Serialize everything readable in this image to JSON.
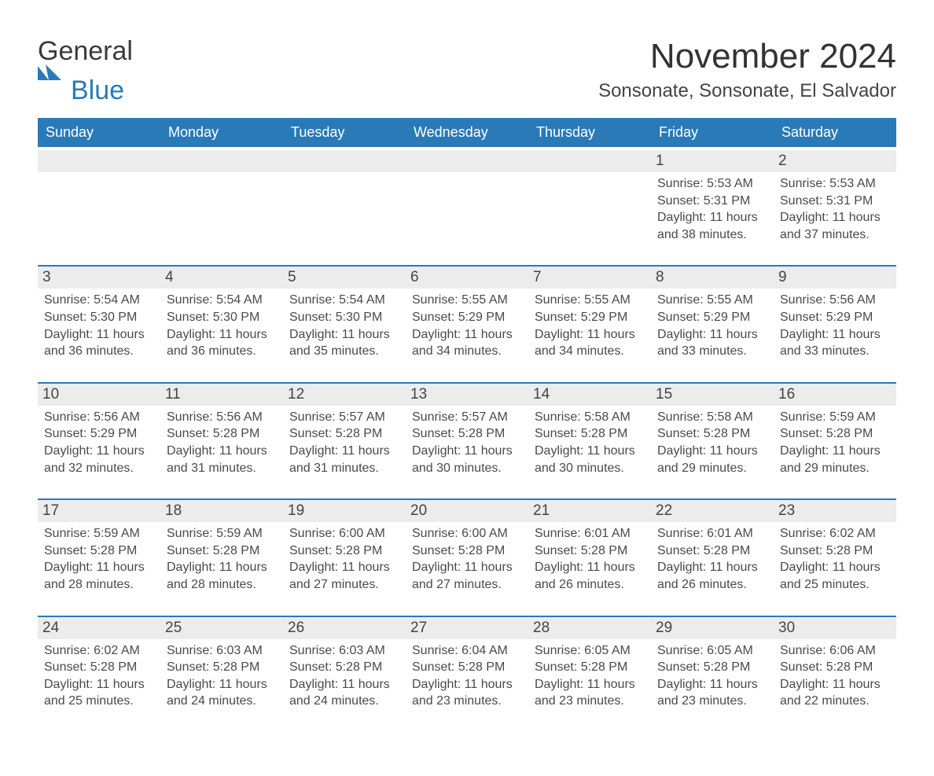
{
  "brand": {
    "name_part1": "General",
    "name_part2": "Blue",
    "mark_color": "#2a7ab8"
  },
  "header": {
    "month_title": "November 2024",
    "location": "Sonsonate, Sonsonate, El Salvador"
  },
  "colors": {
    "brand_blue": "#2a7ab8",
    "row_bg": "#ececec",
    "text": "#333333",
    "muted": "#4a4a4a",
    "page_bg": "#ffffff"
  },
  "days_of_week": [
    "Sunday",
    "Monday",
    "Tuesday",
    "Wednesday",
    "Thursday",
    "Friday",
    "Saturday"
  ],
  "weeks": [
    [
      null,
      null,
      null,
      null,
      null,
      {
        "n": 1,
        "sunrise": "5:53 AM",
        "sunset": "5:31 PM",
        "daylight": "11 hours and 38 minutes."
      },
      {
        "n": 2,
        "sunrise": "5:53 AM",
        "sunset": "5:31 PM",
        "daylight": "11 hours and 37 minutes."
      }
    ],
    [
      {
        "n": 3,
        "sunrise": "5:54 AM",
        "sunset": "5:30 PM",
        "daylight": "11 hours and 36 minutes."
      },
      {
        "n": 4,
        "sunrise": "5:54 AM",
        "sunset": "5:30 PM",
        "daylight": "11 hours and 36 minutes."
      },
      {
        "n": 5,
        "sunrise": "5:54 AM",
        "sunset": "5:30 PM",
        "daylight": "11 hours and 35 minutes."
      },
      {
        "n": 6,
        "sunrise": "5:55 AM",
        "sunset": "5:29 PM",
        "daylight": "11 hours and 34 minutes."
      },
      {
        "n": 7,
        "sunrise": "5:55 AM",
        "sunset": "5:29 PM",
        "daylight": "11 hours and 34 minutes."
      },
      {
        "n": 8,
        "sunrise": "5:55 AM",
        "sunset": "5:29 PM",
        "daylight": "11 hours and 33 minutes."
      },
      {
        "n": 9,
        "sunrise": "5:56 AM",
        "sunset": "5:29 PM",
        "daylight": "11 hours and 33 minutes."
      }
    ],
    [
      {
        "n": 10,
        "sunrise": "5:56 AM",
        "sunset": "5:29 PM",
        "daylight": "11 hours and 32 minutes."
      },
      {
        "n": 11,
        "sunrise": "5:56 AM",
        "sunset": "5:28 PM",
        "daylight": "11 hours and 31 minutes."
      },
      {
        "n": 12,
        "sunrise": "5:57 AM",
        "sunset": "5:28 PM",
        "daylight": "11 hours and 31 minutes."
      },
      {
        "n": 13,
        "sunrise": "5:57 AM",
        "sunset": "5:28 PM",
        "daylight": "11 hours and 30 minutes."
      },
      {
        "n": 14,
        "sunrise": "5:58 AM",
        "sunset": "5:28 PM",
        "daylight": "11 hours and 30 minutes."
      },
      {
        "n": 15,
        "sunrise": "5:58 AM",
        "sunset": "5:28 PM",
        "daylight": "11 hours and 29 minutes."
      },
      {
        "n": 16,
        "sunrise": "5:59 AM",
        "sunset": "5:28 PM",
        "daylight": "11 hours and 29 minutes."
      }
    ],
    [
      {
        "n": 17,
        "sunrise": "5:59 AM",
        "sunset": "5:28 PM",
        "daylight": "11 hours and 28 minutes."
      },
      {
        "n": 18,
        "sunrise": "5:59 AM",
        "sunset": "5:28 PM",
        "daylight": "11 hours and 28 minutes."
      },
      {
        "n": 19,
        "sunrise": "6:00 AM",
        "sunset": "5:28 PM",
        "daylight": "11 hours and 27 minutes."
      },
      {
        "n": 20,
        "sunrise": "6:00 AM",
        "sunset": "5:28 PM",
        "daylight": "11 hours and 27 minutes."
      },
      {
        "n": 21,
        "sunrise": "6:01 AM",
        "sunset": "5:28 PM",
        "daylight": "11 hours and 26 minutes."
      },
      {
        "n": 22,
        "sunrise": "6:01 AM",
        "sunset": "5:28 PM",
        "daylight": "11 hours and 26 minutes."
      },
      {
        "n": 23,
        "sunrise": "6:02 AM",
        "sunset": "5:28 PM",
        "daylight": "11 hours and 25 minutes."
      }
    ],
    [
      {
        "n": 24,
        "sunrise": "6:02 AM",
        "sunset": "5:28 PM",
        "daylight": "11 hours and 25 minutes."
      },
      {
        "n": 25,
        "sunrise": "6:03 AM",
        "sunset": "5:28 PM",
        "daylight": "11 hours and 24 minutes."
      },
      {
        "n": 26,
        "sunrise": "6:03 AM",
        "sunset": "5:28 PM",
        "daylight": "11 hours and 24 minutes."
      },
      {
        "n": 27,
        "sunrise": "6:04 AM",
        "sunset": "5:28 PM",
        "daylight": "11 hours and 23 minutes."
      },
      {
        "n": 28,
        "sunrise": "6:05 AM",
        "sunset": "5:28 PM",
        "daylight": "11 hours and 23 minutes."
      },
      {
        "n": 29,
        "sunrise": "6:05 AM",
        "sunset": "5:28 PM",
        "daylight": "11 hours and 23 minutes."
      },
      {
        "n": 30,
        "sunrise": "6:06 AM",
        "sunset": "5:28 PM",
        "daylight": "11 hours and 22 minutes."
      }
    ]
  ],
  "labels": {
    "sunrise": "Sunrise:",
    "sunset": "Sunset:",
    "daylight": "Daylight:"
  }
}
